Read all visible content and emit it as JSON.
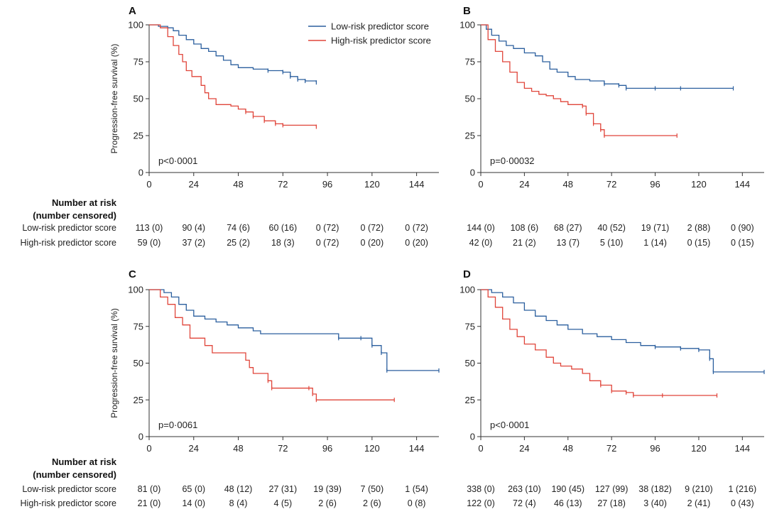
{
  "colors": {
    "low": "#2b5f9e",
    "high": "#e0453a",
    "axis": "#333333"
  },
  "risk_table": {
    "heading_line1": "Number at risk",
    "heading_line2": "(number censored)"
  },
  "chart_data": [
    {
      "panel": "A",
      "type": "line",
      "ylabel": "Progression-free survival (%)",
      "xlim": [
        0,
        156
      ],
      "ylim": [
        0,
        100
      ],
      "xticks": [
        0,
        24,
        48,
        72,
        96,
        120,
        144
      ],
      "yticks": [
        0,
        25,
        50,
        75,
        100
      ],
      "pvalue": "p<0·0001",
      "legend": {
        "position": "top-right",
        "entries": [
          "Low-risk predictor score",
          "High-risk predictor score"
        ]
      },
      "series": [
        {
          "name": "Low-risk predictor score",
          "color_key": "low",
          "points": [
            [
              0,
              100
            ],
            [
              5,
              99
            ],
            [
              10,
              98
            ],
            [
              13,
              96
            ],
            [
              16,
              93
            ],
            [
              20,
              90
            ],
            [
              24,
              87
            ],
            [
              28,
              84
            ],
            [
              32,
              82
            ],
            [
              36,
              79
            ],
            [
              40,
              76
            ],
            [
              44,
              73
            ],
            [
              48,
              71
            ],
            [
              56,
              70
            ],
            [
              64,
              69
            ],
            [
              72,
              68
            ],
            [
              76,
              65
            ],
            [
              80,
              63
            ],
            [
              84,
              62
            ],
            [
              90,
              61
            ]
          ]
        },
        {
          "name": "High-risk predictor score",
          "color_key": "high",
          "points": [
            [
              0,
              100
            ],
            [
              6,
              98
            ],
            [
              10,
              92
            ],
            [
              13,
              86
            ],
            [
              16,
              80
            ],
            [
              18,
              75
            ],
            [
              20,
              69
            ],
            [
              23,
              65
            ],
            [
              28,
              59
            ],
            [
              30,
              54
            ],
            [
              32,
              50
            ],
            [
              36,
              46
            ],
            [
              44,
              45
            ],
            [
              48,
              43
            ],
            [
              52,
              41
            ],
            [
              56,
              38
            ],
            [
              62,
              35
            ],
            [
              68,
              33
            ],
            [
              72,
              32
            ],
            [
              90,
              31
            ]
          ]
        }
      ],
      "risk_rows": [
        {
          "label": "Low-risk predictor score",
          "cells": [
            "113 (0)",
            "90 (4)",
            "74 (6)",
            "60 (16)",
            "0 (72)",
            "0 (72)",
            "0 (72)"
          ]
        },
        {
          "label": "High-risk predictor score",
          "cells": [
            "59 (0)",
            "37 (2)",
            "25 (2)",
            "18 (3)",
            "0 (72)",
            "0 (20)",
            "0 (20)"
          ]
        }
      ]
    },
    {
      "panel": "B",
      "type": "line",
      "ylabel": "",
      "xlim": [
        0,
        156
      ],
      "ylim": [
        0,
        100
      ],
      "xticks": [
        0,
        24,
        48,
        72,
        96,
        120,
        144
      ],
      "yticks": [
        0,
        25,
        50,
        75,
        100
      ],
      "pvalue": "p=0·00032",
      "series": [
        {
          "name": "Low-risk predictor score",
          "color_key": "low",
          "points": [
            [
              0,
              100
            ],
            [
              3,
              97
            ],
            [
              6,
              93
            ],
            [
              10,
              89
            ],
            [
              14,
              86
            ],
            [
              18,
              84
            ],
            [
              24,
              81
            ],
            [
              30,
              79
            ],
            [
              34,
              75
            ],
            [
              38,
              70
            ],
            [
              42,
              68
            ],
            [
              48,
              65
            ],
            [
              52,
              63
            ],
            [
              60,
              62
            ],
            [
              68,
              60
            ],
            [
              76,
              59
            ],
            [
              80,
              57
            ],
            [
              96,
              57
            ],
            [
              110,
              57
            ],
            [
              139,
              57
            ]
          ]
        },
        {
          "name": "High-risk predictor score",
          "color_key": "high",
          "points": [
            [
              0,
              100
            ],
            [
              4,
              90
            ],
            [
              8,
              82
            ],
            [
              12,
              75
            ],
            [
              16,
              68
            ],
            [
              20,
              61
            ],
            [
              24,
              57
            ],
            [
              28,
              55
            ],
            [
              32,
              53
            ],
            [
              36,
              52
            ],
            [
              40,
              50
            ],
            [
              44,
              48
            ],
            [
              48,
              46
            ],
            [
              56,
              45
            ],
            [
              58,
              40
            ],
            [
              62,
              33
            ],
            [
              66,
              29
            ],
            [
              68,
              25
            ],
            [
              108,
              25
            ]
          ]
        }
      ],
      "risk_rows": [
        {
          "label": "",
          "cells": [
            "144 (0)",
            "108 (6)",
            "68 (27)",
            "40 (52)",
            "19 (71)",
            "2 (88)",
            "0 (90)"
          ]
        },
        {
          "label": "",
          "cells": [
            "42 (0)",
            "21 (2)",
            "13 (7)",
            "5 (10)",
            "1 (14)",
            "0 (15)",
            "0 (15)"
          ]
        }
      ]
    },
    {
      "panel": "C",
      "type": "line",
      "ylabel": "Progression-free survival (%)",
      "xlim": [
        0,
        156
      ],
      "ylim": [
        0,
        100
      ],
      "xticks": [
        0,
        24,
        48,
        72,
        96,
        120,
        144
      ],
      "yticks": [
        0,
        25,
        50,
        75,
        100
      ],
      "pvalue": "p=0·0061",
      "series": [
        {
          "name": "Low-risk predictor score",
          "color_key": "low",
          "points": [
            [
              0,
              100
            ],
            [
              8,
              98
            ],
            [
              12,
              95
            ],
            [
              16,
              90
            ],
            [
              20,
              86
            ],
            [
              24,
              82
            ],
            [
              30,
              80
            ],
            [
              36,
              78
            ],
            [
              42,
              76
            ],
            [
              48,
              74
            ],
            [
              56,
              72
            ],
            [
              60,
              70
            ],
            [
              80,
              70
            ],
            [
              100,
              70
            ],
            [
              102,
              67
            ],
            [
              114,
              67
            ],
            [
              120,
              62
            ],
            [
              125,
              57
            ],
            [
              128,
              45
            ],
            [
              156,
              45
            ]
          ]
        },
        {
          "name": "High-risk predictor score",
          "color_key": "high",
          "points": [
            [
              0,
              100
            ],
            [
              6,
              95
            ],
            [
              10,
              90
            ],
            [
              14,
              81
            ],
            [
              18,
              76
            ],
            [
              22,
              67
            ],
            [
              30,
              62
            ],
            [
              34,
              57
            ],
            [
              48,
              57
            ],
            [
              52,
              52
            ],
            [
              54,
              47
            ],
            [
              56,
              43
            ],
            [
              64,
              38
            ],
            [
              66,
              33
            ],
            [
              86,
              33
            ],
            [
              88,
              29
            ],
            [
              90,
              25
            ],
            [
              132,
              25
            ]
          ]
        }
      ],
      "risk_rows": [
        {
          "label": "Low-risk predictor score",
          "cells": [
            "81 (0)",
            "65 (0)",
            "48 (12)",
            "27 (31)",
            "19 (39)",
            "7 (50)",
            "1 (54)"
          ]
        },
        {
          "label": "High-risk predictor score",
          "cells": [
            "21 (0)",
            "14 (0)",
            "8 (4)",
            "4 (5)",
            "2 (6)",
            "2 (6)",
            "0 (8)"
          ]
        }
      ]
    },
    {
      "panel": "D",
      "type": "line",
      "ylabel": "",
      "xlim": [
        0,
        156
      ],
      "ylim": [
        0,
        100
      ],
      "xticks": [
        0,
        24,
        48,
        72,
        96,
        120,
        144
      ],
      "yticks": [
        0,
        25,
        50,
        75,
        100
      ],
      "pvalue": "p<0·0001",
      "series": [
        {
          "name": "Low-risk predictor score",
          "color_key": "low",
          "points": [
            [
              0,
              100
            ],
            [
              6,
              98
            ],
            [
              12,
              95
            ],
            [
              18,
              91
            ],
            [
              24,
              86
            ],
            [
              30,
              82
            ],
            [
              36,
              79
            ],
            [
              42,
              76
            ],
            [
              48,
              73
            ],
            [
              56,
              70
            ],
            [
              64,
              68
            ],
            [
              72,
              66
            ],
            [
              80,
              64
            ],
            [
              88,
              62
            ],
            [
              96,
              61
            ],
            [
              110,
              60
            ],
            [
              120,
              59
            ],
            [
              126,
              53
            ],
            [
              128,
              44
            ],
            [
              156,
              44
            ]
          ]
        },
        {
          "name": "High-risk predictor score",
          "color_key": "high",
          "points": [
            [
              0,
              100
            ],
            [
              4,
              95
            ],
            [
              8,
              88
            ],
            [
              12,
              80
            ],
            [
              16,
              73
            ],
            [
              20,
              68
            ],
            [
              24,
              63
            ],
            [
              30,
              59
            ],
            [
              36,
              54
            ],
            [
              40,
              50
            ],
            [
              44,
              48
            ],
            [
              50,
              46
            ],
            [
              56,
              43
            ],
            [
              60,
              38
            ],
            [
              66,
              35
            ],
            [
              72,
              31
            ],
            [
              80,
              30
            ],
            [
              84,
              28
            ],
            [
              100,
              28
            ],
            [
              130,
              28
            ]
          ]
        }
      ],
      "risk_rows": [
        {
          "label": "",
          "cells": [
            "338 (0)",
            "263 (10)",
            "190 (45)",
            "127 (99)",
            "38 (182)",
            "9 (210)",
            "1 (216)"
          ]
        },
        {
          "label": "",
          "cells": [
            "122 (0)",
            "72 (4)",
            "46 (13)",
            "27 (18)",
            "3 (40)",
            "2 (41)",
            "0 (43)"
          ]
        }
      ]
    }
  ]
}
